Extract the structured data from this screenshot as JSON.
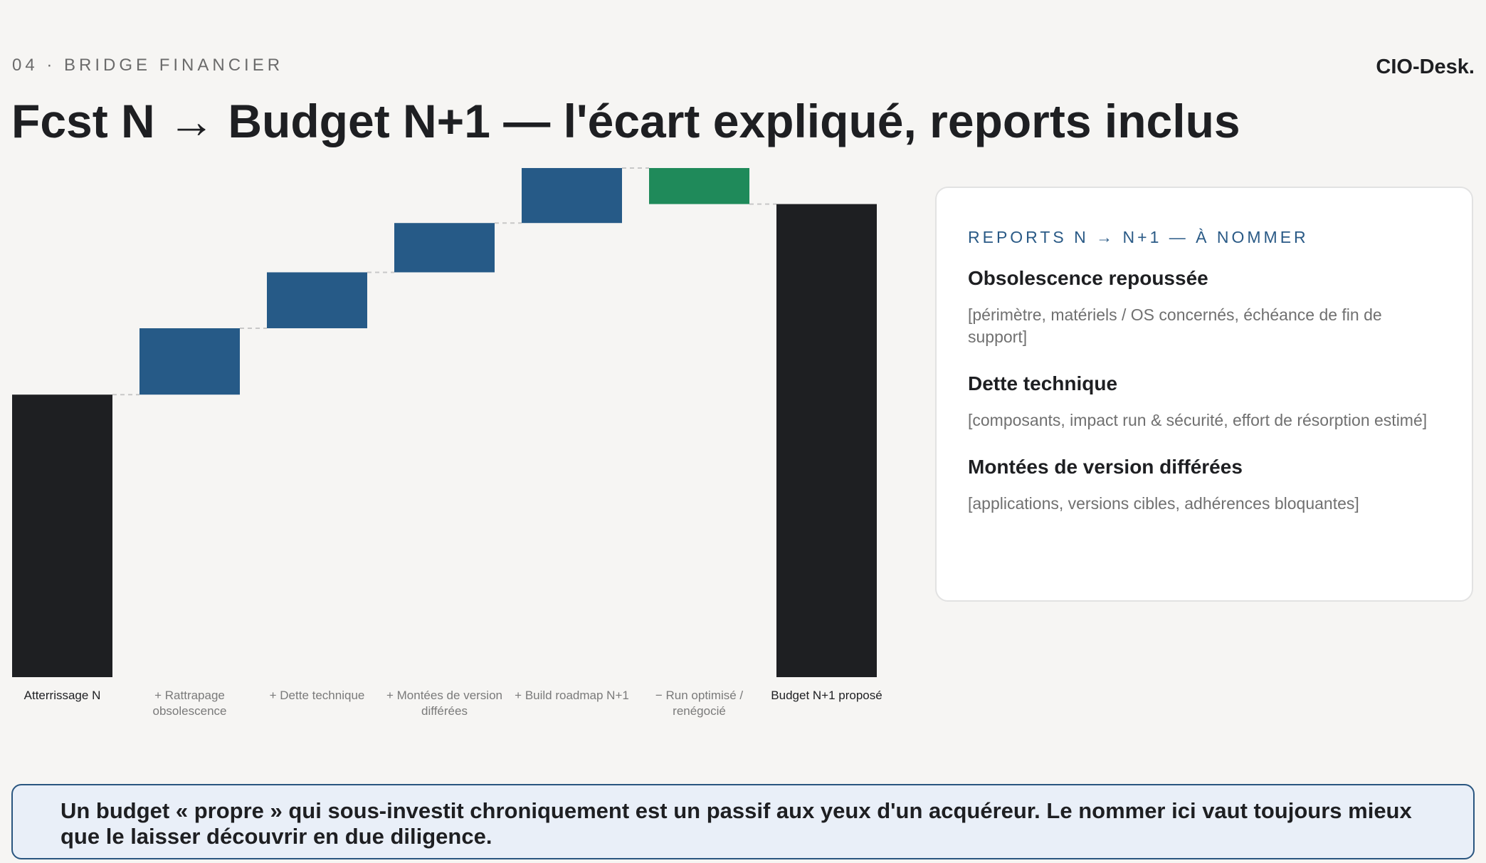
{
  "header": {
    "eyebrow": "04 · BRIDGE FINANCIER",
    "brand": "CIO-Desk.",
    "title": "Fcst N → Budget N+1 — l'écart expliqué, reports inclus"
  },
  "chart_data": {
    "type": "waterfall",
    "categories": [
      "Atterrissage N",
      "+ Rattrapage obsolescence",
      "+ Dette technique",
      "+ Montées de version différées",
      "+ Build roadmap N+1",
      "− Run optimisé / renégocié",
      "Budget N+1 proposé"
    ],
    "values": [
      298,
      70,
      59,
      52,
      58,
      -38,
      499
    ],
    "totals": [
      true,
      false,
      false,
      false,
      false,
      false,
      true
    ],
    "colors": {
      "total": "#1e1f22",
      "increase": "#265a87",
      "decrease": "#1f8a5a"
    },
    "ylim": [
      0,
      540
    ]
  },
  "card": {
    "heading": "REPORTS N → N+1 — À NOMMER",
    "items": [
      {
        "title": "Obsolescence repoussée",
        "text": "[périmètre, matériels / OS concernés, échéance de fin de support]"
      },
      {
        "title": "Dette technique",
        "text": "[composants, impact run & sécurité, effort de résorption estimé]"
      },
      {
        "title": "Montées de version différées",
        "text": "[applications, versions cibles, adhérences bloquantes]"
      }
    ]
  },
  "callout": {
    "text": "Un budget « propre » qui sous-investit chroniquement est un passif aux yeux d'un acquéreur. Le nommer ici vaut toujours mieux que le laisser découvrir en due diligence."
  }
}
